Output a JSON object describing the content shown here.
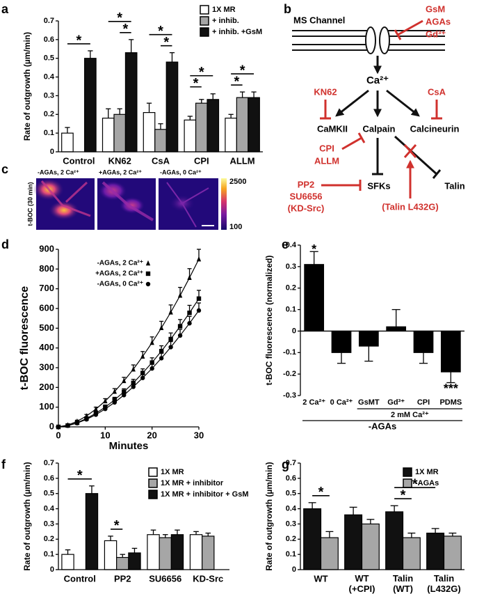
{
  "chart_data": [
    {
      "panel": "a",
      "type": "bar",
      "ylabel": "Rate of outgrowth (µm/min)",
      "categories": [
        "Control",
        "KN62",
        "CsA",
        "CPI",
        "ALLM"
      ],
      "series": [
        {
          "name": "1X MR",
          "color": "#ffffff",
          "values": [
            0.1,
            0.18,
            0.21,
            0.17,
            0.18
          ],
          "errors": [
            0.03,
            0.05,
            0.05,
            0.02,
            0.02
          ]
        },
        {
          "name": "+ inhib.",
          "color": "#a6a6a6",
          "values": [
            null,
            0.2,
            0.12,
            0.26,
            0.29
          ],
          "errors": [
            null,
            0.03,
            0.03,
            0.02,
            0.03
          ]
        },
        {
          "name": "+ inhib. +GsM",
          "color": "#111111",
          "values": [
            0.5,
            0.53,
            0.48,
            0.28,
            0.29
          ],
          "errors": [
            0.04,
            0.07,
            0.05,
            0.03,
            0.03
          ]
        }
      ],
      "ylim": [
        0,
        0.7
      ],
      "yticks": [
        0,
        0.1,
        0.2,
        0.3,
        0.4,
        0.5,
        0.6,
        0.7
      ],
      "significance": [
        {
          "label": "*",
          "a": [
            "Control",
            "1X MR"
          ],
          "b": [
            "Control",
            "+ inhib. +GsM"
          ]
        },
        {
          "label": "*",
          "a": [
            "KN62",
            "1X MR"
          ],
          "b": [
            "KN62",
            "+ inhib. +GsM"
          ]
        },
        {
          "label": "*",
          "a": [
            "KN62",
            "+ inhib."
          ],
          "b": [
            "KN62",
            "+ inhib. +GsM"
          ]
        },
        {
          "label": "*",
          "a": [
            "CsA",
            "1X MR"
          ],
          "b": [
            "CsA",
            "+ inhib. +GsM"
          ]
        },
        {
          "label": "*",
          "a": [
            "CsA",
            "+ inhib."
          ],
          "b": [
            "CsA",
            "+ inhib. +GsM"
          ]
        },
        {
          "label": "*",
          "a": [
            "CPI",
            "1X MR"
          ],
          "b": [
            "CPI",
            "+ inhib."
          ]
        },
        {
          "label": "*",
          "a": [
            "CPI",
            "1X MR"
          ],
          "b": [
            "CPI",
            "+ inhib. +GsM"
          ]
        },
        {
          "label": "*",
          "a": [
            "ALLM",
            "1X MR"
          ],
          "b": [
            "ALLM",
            "+ inhib."
          ]
        },
        {
          "label": "*",
          "a": [
            "ALLM",
            "1X MR"
          ],
          "b": [
            "ALLM",
            "+ inhib. +GsM"
          ]
        }
      ]
    },
    {
      "panel": "d",
      "type": "line",
      "xlabel": "Minutes",
      "ylabel": "t-BOC fluorescence",
      "color": "#000000",
      "x": [
        0,
        2,
        4,
        6,
        8,
        10,
        12,
        14,
        16,
        18,
        20,
        22,
        24,
        26,
        28,
        30
      ],
      "series": [
        {
          "name": "-AGAs, 2 Ca²⁺",
          "marker": "triangle",
          "values": [
            0,
            9,
            28,
            55,
            90,
            131,
            179,
            233,
            292,
            357,
            427,
            502,
            581,
            666,
            756,
            850
          ],
          "errors": [
            5,
            5,
            6,
            8,
            10,
            12,
            15,
            18,
            22,
            25,
            29,
            33,
            37,
            41,
            46,
            50
          ]
        },
        {
          "name": "+AGAs, 2 Ca²⁺",
          "marker": "square",
          "values": [
            0,
            7,
            21,
            42,
            69,
            100,
            137,
            178,
            223,
            273,
            326,
            384,
            445,
            510,
            578,
            650
          ],
          "errors": [
            5,
            5,
            6,
            7,
            9,
            11,
            13,
            15,
            18,
            21,
            24,
            27,
            31,
            34,
            38,
            42
          ]
        },
        {
          "name": "-AGAs, 0 Ca²⁺",
          "marker": "circle",
          "values": [
            0,
            6,
            19,
            38,
            62,
            91,
            124,
            161,
            203,
            248,
            296,
            348,
            404,
            463,
            525,
            590
          ],
          "errors": [
            5,
            5,
            5,
            7,
            8,
            10,
            12,
            14,
            16,
            19,
            22,
            25,
            28,
            31,
            35,
            38
          ]
        }
      ],
      "xlim": [
        0,
        30
      ],
      "xticks": [
        0,
        10,
        20,
        30
      ],
      "ylim": [
        0,
        900
      ],
      "yticks": [
        0,
        100,
        200,
        300,
        400,
        500,
        600,
        700,
        800,
        900
      ]
    },
    {
      "panel": "e",
      "type": "bar",
      "ylabel": "t-BOC fluorescence (normalized)",
      "color": "#000000",
      "categories": [
        "2 Ca²⁺",
        "0 Ca²⁺",
        "GsMT",
        "Gd³⁺",
        "CPI",
        "PDMS"
      ],
      "values": [
        0.31,
        -0.1,
        -0.07,
        0.02,
        -0.1,
        -0.19
      ],
      "errors": [
        0.06,
        0.05,
        0.07,
        0.08,
        0.05,
        0.05
      ],
      "ylim": [
        -0.3,
        0.4
      ],
      "yticks": [
        -0.3,
        -0.2,
        -0.1,
        0,
        0.1,
        0.2,
        0.3,
        0.4
      ],
      "annotations": [
        {
          "label": "*",
          "category": "2 Ca²⁺"
        },
        {
          "label": "***",
          "category": "PDMS"
        }
      ],
      "groups": [
        {
          "label": "2 mM Ca²⁺",
          "from": "GsMT",
          "to": "PDMS"
        },
        {
          "label": "-AGAs",
          "from": "2 Ca²⁺",
          "to": "PDMS"
        }
      ]
    },
    {
      "panel": "f",
      "type": "bar",
      "ylabel": "Rate of outgrowth (µm/min)",
      "categories": [
        "Control",
        "PP2",
        "SU6656",
        "KD-Src"
      ],
      "series": [
        {
          "name": "1X MR",
          "color": "#ffffff",
          "values": [
            0.1,
            0.19,
            0.23,
            0.23
          ],
          "errors": [
            0.03,
            0.03,
            0.03,
            0.02
          ]
        },
        {
          "name": "1X MR + inhibitor",
          "color": "#a6a6a6",
          "values": [
            null,
            0.08,
            0.21,
            0.22
          ],
          "errors": [
            null,
            0.02,
            0.02,
            0.02
          ]
        },
        {
          "name": "1X MR + inhibitor + GsM",
          "color": "#111111",
          "values": [
            0.5,
            0.11,
            0.23,
            null
          ],
          "errors": [
            0.05,
            0.03,
            0.03,
            null
          ]
        }
      ],
      "ylim": [
        0,
        0.7
      ],
      "yticks": [
        0,
        0.1,
        0.2,
        0.3,
        0.4,
        0.5,
        0.6,
        0.7
      ],
      "significance": [
        {
          "label": "*",
          "a": [
            "Control",
            "1X MR"
          ],
          "b": [
            "Control",
            "1X MR + inhibitor + GsM"
          ]
        },
        {
          "label": "*",
          "a": [
            "PP2",
            "1X MR"
          ],
          "b": [
            "PP2",
            "1X MR + inhibitor"
          ]
        }
      ]
    },
    {
      "panel": "g",
      "type": "bar",
      "ylabel": "Rate of outgrowth (µm/min)",
      "categories": [
        "WT",
        "WT (+CPI)",
        "Talin (WT)",
        "Talin (L432G)"
      ],
      "series": [
        {
          "name": "1X MR",
          "color": "#111111",
          "values": [
            0.4,
            0.36,
            0.38,
            0.24
          ],
          "errors": [
            0.04,
            0.05,
            0.04,
            0.03
          ]
        },
        {
          "name": "-AGAs",
          "color": "#a6a6a6",
          "values": [
            0.21,
            0.3,
            0.21,
            0.22
          ],
          "errors": [
            0.04,
            0.03,
            0.03,
            0.02
          ]
        }
      ],
      "ylim": [
        0,
        0.7
      ],
      "yticks": [
        0,
        0.1,
        0.2,
        0.3,
        0.4,
        0.5,
        0.6,
        0.7
      ],
      "significance": [
        {
          "label": "*",
          "a": [
            "WT",
            "1X MR"
          ],
          "b": [
            "WT",
            "-AGAs"
          ]
        },
        {
          "label": "*",
          "a": [
            "Talin (WT)",
            "1X MR"
          ],
          "b": [
            "Talin (WT)",
            "-AGAs"
          ]
        },
        {
          "label": "*",
          "a": [
            "Talin (WT)",
            "1X MR"
          ],
          "b": [
            "Talin (L432G)",
            "1X MR"
          ]
        }
      ]
    }
  ],
  "diagram": {
    "panel": "b",
    "channel": "MS Channel",
    "blockers": [
      "GsM",
      "AGAs",
      "Gd³⁺"
    ],
    "ion": "Ca²⁺",
    "kn62": "KN62",
    "csa": "CsA",
    "camkii": "CaMKII",
    "calpain": "Calpain",
    "calcineurin": "Calcineurin",
    "calpain_inhibitors": [
      "CPI",
      "ALLM"
    ],
    "sfks": "SFKs",
    "talin": "Talin",
    "src_inhibitors": [
      "PP2",
      "SU6656",
      "(KD-Src)"
    ],
    "mutant": "(Talin L432G)"
  },
  "images": {
    "panel": "c",
    "ylabel": "t-BOC (30 min)",
    "conditions": [
      "-AGAs, 2 Ca²⁺",
      "+AGAs, 2 Ca²⁺",
      "-AGAs, 0 Ca²⁺"
    ],
    "colorbar": {
      "max": 2500,
      "min": 100
    }
  }
}
